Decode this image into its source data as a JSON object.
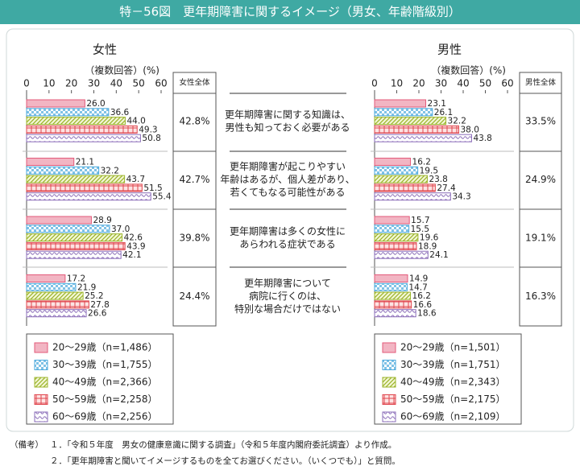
{
  "header": {
    "title": "特－56図　更年期障害に関するイメージ（男女、年齢階級別）"
  },
  "chart_data": [
    {
      "type": "bar",
      "orientation": "horizontal",
      "title": "女性",
      "x_label": "（複数回答）(%)",
      "categories": [
        [
          "更年期障害に関する知識は、",
          "男性も知っておく必要がある"
        ],
        [
          "更年期障害が起こりやすい",
          "年齢はあるが、個人差があり、",
          "若くてもなる可能性がある"
        ],
        [
          "更年期障害は多くの女性に",
          "あらわれる症状である"
        ],
        [
          "更年期障害について",
          "病院に行くのは、",
          "特別な場合だけではない"
        ]
      ],
      "xlim": [
        0,
        60
      ],
      "xticks": [
        0,
        10,
        20,
        30,
        40,
        50,
        60
      ],
      "series": [
        {
          "name": "20～29歳（n=1,486）",
          "color": "#e35a7a",
          "values": [
            26.0,
            21.1,
            28.9,
            17.2
          ],
          "value_labels": [
            "26.0",
            "21.1",
            "28.9",
            "17.2"
          ]
        },
        {
          "name": "30～39歳（n=1,755）",
          "color": "#4aa8dc",
          "values": [
            36.6,
            32.2,
            37.0,
            21.9
          ],
          "value_labels": [
            "36.6",
            "32.2",
            "37.0",
            "21.9"
          ]
        },
        {
          "name": "40～49歳（n=2,366）",
          "color": "#9cb52c",
          "values": [
            44.0,
            43.7,
            42.6,
            25.2
          ],
          "value_labels": [
            "44.0",
            "43.7",
            "42.6",
            "25.2"
          ]
        },
        {
          "name": "50～59歳（n=2,258）",
          "color": "#e0464e",
          "values": [
            49.3,
            51.5,
            43.9,
            27.8
          ],
          "value_labels": [
            "49.3",
            "51.5",
            "43.9",
            "27.8"
          ]
        },
        {
          "name": "60～69歳（n=2,256）",
          "color": "#8a6cb8",
          "values": [
            50.8,
            55.4,
            42.1,
            26.6
          ],
          "value_labels": [
            "50.8",
            "55.4",
            "42.1",
            "26.6"
          ]
        }
      ],
      "totals": {
        "header": "女性全体",
        "values": [
          42.8,
          42.7,
          39.8,
          24.4
        ],
        "value_labels": [
          "42.8%",
          "42.7%",
          "39.8%",
          "24.4%"
        ]
      }
    },
    {
      "type": "bar",
      "orientation": "horizontal",
      "title": "男性",
      "x_label": "（複数回答）(%)",
      "xlim": [
        0,
        60
      ],
      "xticks": [
        0,
        10,
        20,
        30,
        40,
        50,
        60
      ],
      "series": [
        {
          "name": "20～29歳（n=1,501）",
          "color": "#e35a7a",
          "values": [
            23.1,
            16.2,
            15.7,
            14.9
          ],
          "value_labels": [
            "23.1",
            "16.2",
            "15.7",
            "14.9"
          ]
        },
        {
          "name": "30～39歳（n=1,751）",
          "color": "#4aa8dc",
          "values": [
            26.1,
            19.5,
            15.5,
            14.7
          ],
          "value_labels": [
            "26.1",
            "19.5",
            "15.5",
            "14.7"
          ]
        },
        {
          "name": "40～49歳（n=2,343）",
          "color": "#9cb52c",
          "values": [
            32.2,
            23.8,
            19.6,
            16.2
          ],
          "value_labels": [
            "32.2",
            "23.8",
            "19.6",
            "16.2"
          ]
        },
        {
          "name": "50～59歳（n=2,175）",
          "color": "#e0464e",
          "values": [
            38.0,
            27.4,
            18.9,
            16.6
          ],
          "value_labels": [
            "38.0",
            "27.4",
            "18.9",
            "16.6"
          ]
        },
        {
          "name": "60～69歳（n=2,109）",
          "color": "#8a6cb8",
          "values": [
            43.8,
            34.3,
            24.1,
            18.6
          ],
          "value_labels": [
            "43.8",
            "34.3",
            "24.1",
            "18.6"
          ]
        }
      ],
      "totals": {
        "header": "男性全体",
        "values": [
          33.5,
          24.9,
          19.1,
          16.3
        ],
        "value_labels": [
          "33.5%",
          "24.9%",
          "19.1%",
          "16.3%"
        ]
      }
    }
  ],
  "notes": {
    "label": "（備考）",
    "items": [
      "１．「令和５年度　男女の健康意識に関する調査」（令和５年度内閣府委託調査）より作成。",
      "２．「更年期障害と聞いてイメージするものを全てお選びください。（いくつでも）」と質問。"
    ]
  }
}
